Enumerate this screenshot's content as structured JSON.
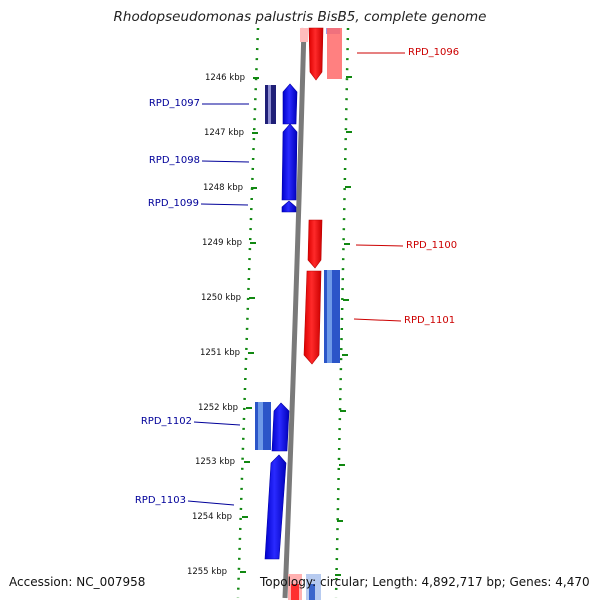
{
  "title": "Rhodopseudomonas palustris BisB5, complete genome",
  "accession_text": "Accession: NC_007958",
  "summary_text": "Topology: circular; Length: 4,892,717 bp; Genes: 4,470",
  "colors": {
    "forward": "#0000ee",
    "reverse": "#ff0000",
    "forward_label": "#000099",
    "reverse_label": "#cc0000",
    "ruler": "#118811",
    "backbone": "#888888"
  },
  "scale_labels": [
    "1246 kbp",
    "1247 kbp",
    "1248 kbp",
    "1249 kbp",
    "1250 kbp",
    "1251 kbp",
    "1252 kbp",
    "1253 kbp",
    "1254 kbp",
    "1255 kbp"
  ],
  "genes": [
    {
      "label": "RPD_1096",
      "strand": "reverse"
    },
    {
      "label": "RPD_1097",
      "strand": "forward"
    },
    {
      "label": "RPD_1098",
      "strand": "forward"
    },
    {
      "label": "RPD_1099",
      "strand": "forward"
    },
    {
      "label": "RPD_1100",
      "strand": "reverse"
    },
    {
      "label": "RPD_1101",
      "strand": "reverse"
    },
    {
      "label": "RPD_1102",
      "strand": "forward"
    },
    {
      "label": "RPD_1103",
      "strand": "forward"
    }
  ]
}
